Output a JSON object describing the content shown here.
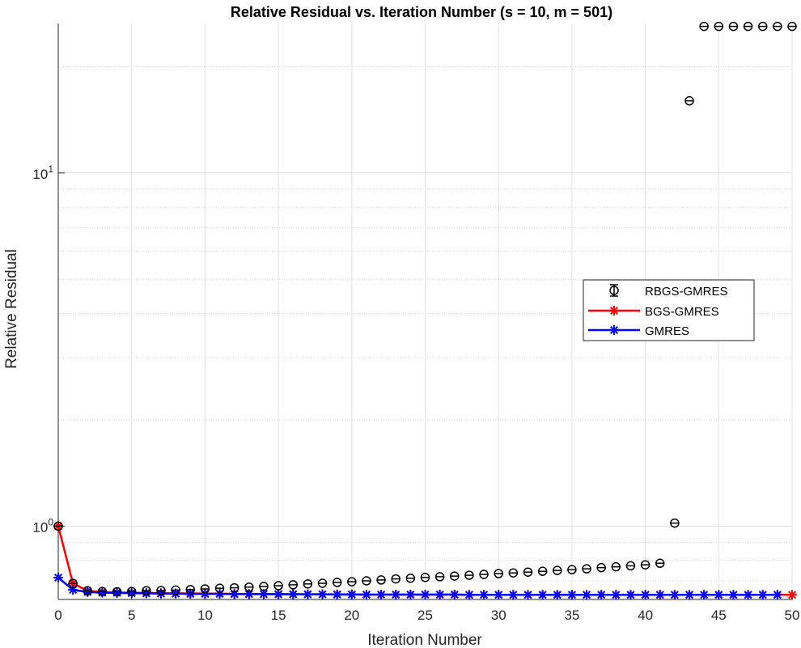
{
  "chart_data": {
    "type": "scatter",
    "title": "Relative Residual vs. Iteration Number (s = 10, m = 501)",
    "xlabel": "Iteration Number",
    "ylabel": "Relative Residual",
    "xlim": [
      0,
      50
    ],
    "ylim": [
      0.62,
      26.5
    ],
    "yscale": "log",
    "grid": true,
    "minor_grid": true,
    "legend_position": "right-middle",
    "x_ticks": [
      0,
      5,
      10,
      15,
      20,
      25,
      30,
      35,
      40,
      45,
      50
    ],
    "y_ticks": [
      {
        "value": 1,
        "label": "10",
        "exponent": "0"
      },
      {
        "value": 10,
        "label": "10",
        "exponent": "1"
      }
    ],
    "series": [
      {
        "name": "RBGS-GMRES",
        "color": "#000000",
        "marker": "circle-with-errorbar",
        "line": false,
        "x": [
          0,
          1,
          2,
          3,
          4,
          5,
          6,
          7,
          8,
          9,
          10,
          11,
          12,
          13,
          14,
          15,
          16,
          17,
          18,
          19,
          20,
          21,
          22,
          23,
          24,
          25,
          26,
          27,
          28,
          29,
          30,
          31,
          32,
          33,
          34,
          35,
          36,
          37,
          38,
          39,
          40,
          41,
          42,
          43,
          44,
          45,
          46,
          47,
          48,
          49,
          50
        ],
        "y": [
          1.0,
          0.688,
          0.656,
          0.653,
          0.652,
          0.653,
          0.656,
          0.657,
          0.659,
          0.661,
          0.664,
          0.667,
          0.669,
          0.672,
          0.675,
          0.678,
          0.682,
          0.686,
          0.689,
          0.693,
          0.696,
          0.7,
          0.704,
          0.709,
          0.712,
          0.716,
          0.719,
          0.722,
          0.726,
          0.73,
          0.734,
          0.737,
          0.741,
          0.745,
          0.749,
          0.753,
          0.757,
          0.763,
          0.767,
          0.772,
          0.777,
          0.785,
          1.02,
          16.0,
          26.0,
          26.0,
          26.0,
          26.0,
          26.0,
          26.0,
          26.0
        ]
      },
      {
        "name": "BGS-GMRES",
        "color": "#ff0000",
        "marker": "asterisk",
        "line": true,
        "x": [
          0,
          1,
          2,
          3,
          4,
          5,
          6,
          7,
          8,
          9,
          10,
          11,
          12,
          13,
          14,
          15,
          16,
          17,
          18,
          19,
          20,
          21,
          22,
          23,
          24,
          25,
          26,
          27,
          28,
          29,
          30,
          31,
          32,
          33,
          34,
          35,
          36,
          37,
          38,
          39,
          40,
          41,
          42,
          43,
          44,
          45,
          46,
          47,
          48,
          49,
          50
        ],
        "y": [
          1.0,
          0.688,
          0.656,
          0.651,
          0.649,
          0.648,
          0.647,
          0.646,
          0.645,
          0.645,
          0.644,
          0.644,
          0.643,
          0.643,
          0.642,
          0.642,
          0.642,
          0.641,
          0.641,
          0.641,
          0.641,
          0.64,
          0.64,
          0.64,
          0.64,
          0.64,
          0.64,
          0.64,
          0.639,
          0.639,
          0.639,
          0.639,
          0.639,
          0.639,
          0.639,
          0.639,
          0.639,
          0.639,
          0.639,
          0.639,
          0.639,
          0.639,
          0.639,
          0.639,
          0.639,
          0.639,
          0.639,
          0.639,
          0.639,
          0.639,
          0.639
        ]
      },
      {
        "name": "GMRES",
        "color": "#0000ff",
        "marker": "asterisk",
        "line": true,
        "x": [
          0,
          1,
          2,
          3,
          4,
          5,
          6,
          7,
          8,
          9,
          10,
          11,
          12,
          13,
          14,
          15,
          16,
          17,
          18,
          19,
          20,
          21,
          22,
          23,
          24,
          25,
          26,
          27,
          28,
          29,
          30,
          31,
          32,
          33,
          34,
          35,
          36,
          37,
          38,
          39,
          40,
          41,
          42,
          43,
          44,
          45,
          46,
          47,
          48,
          49
        ],
        "y": [
          0.715,
          0.66,
          0.651,
          0.648,
          0.647,
          0.646,
          0.645,
          0.644,
          0.644,
          0.643,
          0.643,
          0.643,
          0.642,
          0.642,
          0.642,
          0.641,
          0.641,
          0.641,
          0.641,
          0.64,
          0.64,
          0.64,
          0.64,
          0.64,
          0.64,
          0.64,
          0.64,
          0.64,
          0.639,
          0.639,
          0.639,
          0.639,
          0.639,
          0.639,
          0.639,
          0.639,
          0.639,
          0.639,
          0.639,
          0.639,
          0.639,
          0.639,
          0.639,
          0.639,
          0.639,
          0.639,
          0.639,
          0.639,
          0.639,
          0.639
        ]
      }
    ]
  }
}
